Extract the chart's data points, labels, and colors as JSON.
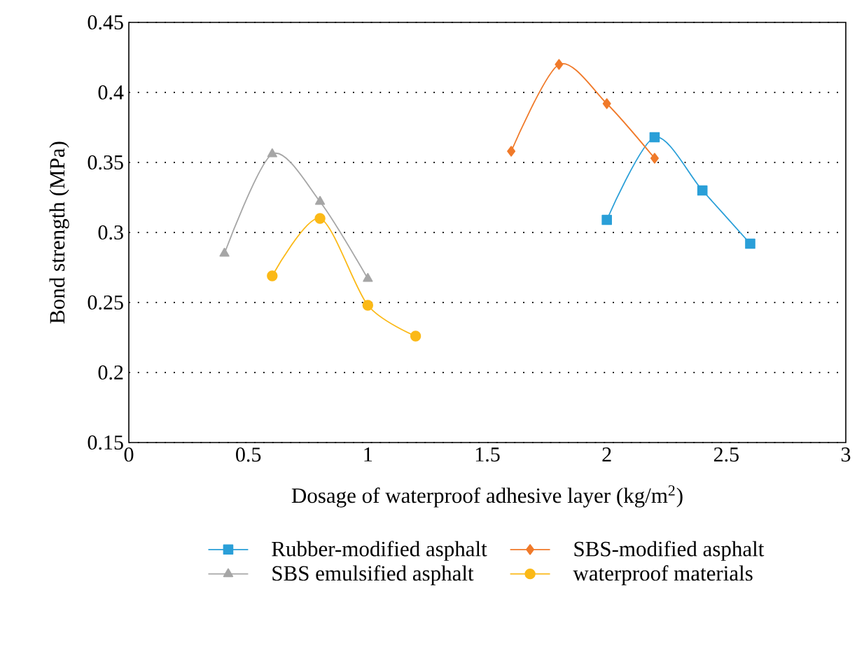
{
  "chart_data": {
    "type": "line",
    "xlabel": "Dosage of waterproof adhesive layer (kg/m$^{2}$)",
    "ylabel": "Bond strength (MPa)",
    "xlim": [
      0,
      3
    ],
    "xticks": [
      0,
      0.5,
      1,
      1.5,
      2,
      2.5,
      3
    ],
    "ylim": [
      0.15,
      0.45
    ],
    "yticks": [
      0.15,
      0.2,
      0.25,
      0.3,
      0.35,
      0.4,
      0.45
    ],
    "grid": "y",
    "legend": "bottom",
    "series": [
      {
        "name": "Rubber-modified asphalt",
        "color": "#2a9fd8",
        "marker": "square",
        "x": [
          2.0,
          2.2,
          2.4,
          2.6
        ],
        "values": [
          0.309,
          0.368,
          0.33,
          0.292
        ]
      },
      {
        "name": "SBS-modified asphalt",
        "color": "#f07a2a",
        "marker": "diamond",
        "x": [
          1.6,
          1.8,
          2.0,
          2.2
        ],
        "values": [
          0.358,
          0.42,
          0.392,
          0.353
        ]
      },
      {
        "name": "SBS emulsified asphalt",
        "color": "#a6a6a6",
        "marker": "triangle",
        "x": [
          0.4,
          0.6,
          0.8,
          1.0
        ],
        "values": [
          0.285,
          0.356,
          0.322,
          0.267
        ]
      },
      {
        "name": "waterproof materials",
        "color": "#fbb917",
        "marker": "circle",
        "x": [
          0.6,
          0.8,
          1.0,
          1.2
        ],
        "values": [
          0.269,
          0.31,
          0.248,
          0.226
        ]
      }
    ]
  }
}
